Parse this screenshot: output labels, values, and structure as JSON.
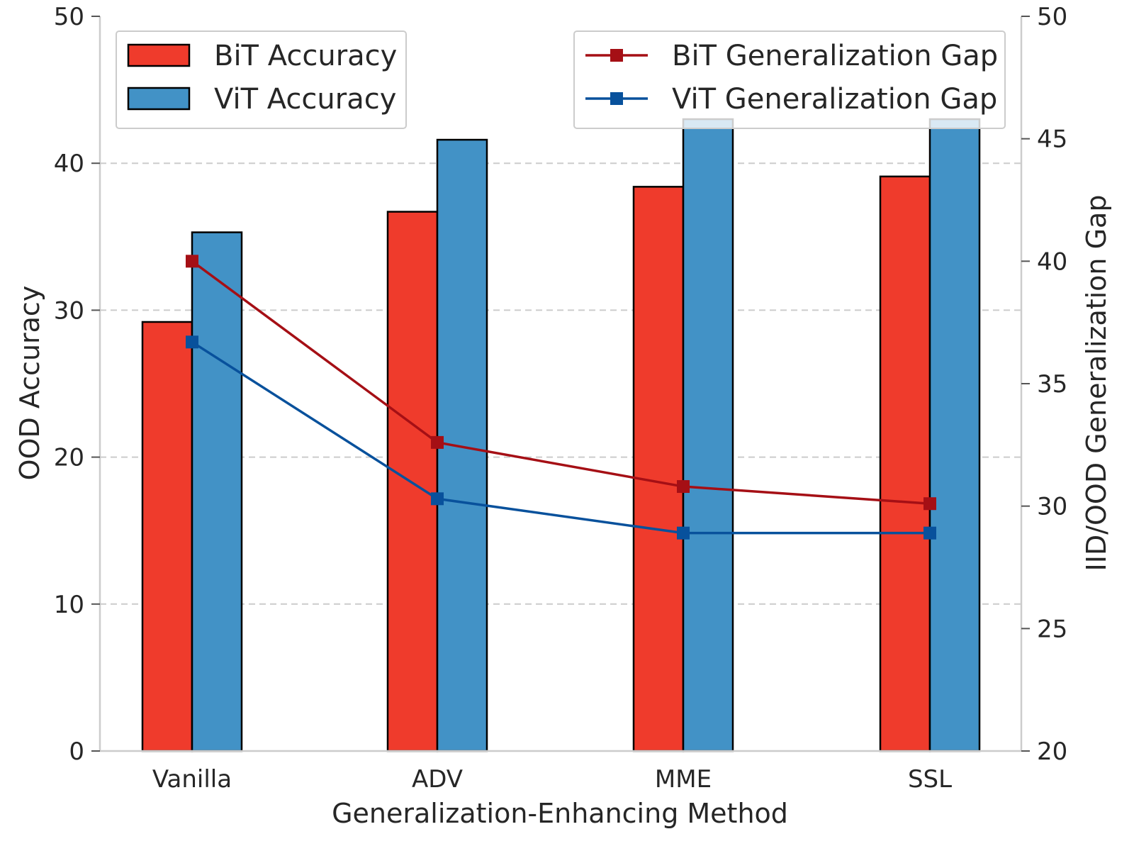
{
  "chart_data": {
    "type": "bar",
    "xlabel": "Generalization-Enhancing Method",
    "ylabel": "OOD Accuracy",
    "y2label": "IID/OOD Generalization Gap",
    "categories": [
      "Vanilla",
      "ADV",
      "MME",
      "SSL"
    ],
    "ylim": [
      0,
      50
    ],
    "y2lim": [
      20,
      50
    ],
    "yticks": [
      0,
      10,
      20,
      30,
      40,
      50
    ],
    "y2ticks": [
      20,
      25,
      30,
      35,
      40,
      45,
      50
    ],
    "grid": "horizontal-dashed",
    "bar_series": [
      {
        "name": "BiT Accuracy",
        "color": "#ef3b2c",
        "values": [
          29.2,
          36.7,
          38.4,
          39.1
        ]
      },
      {
        "name": "ViT Accuracy",
        "color": "#4292c6",
        "values": [
          35.3,
          41.6,
          43.0,
          43.0
        ]
      }
    ],
    "line_series": [
      {
        "name": "BiT Generalization Gap",
        "color": "#a50f15",
        "marker": "square",
        "values": [
          40.0,
          32.6,
          30.8,
          30.1
        ]
      },
      {
        "name": "ViT Generalization Gap",
        "color": "#08519c",
        "marker": "square",
        "values": [
          36.7,
          30.3,
          28.9,
          28.9
        ]
      }
    ],
    "legend_bars_placement": "top-left",
    "legend_lines_placement": "top-right"
  }
}
